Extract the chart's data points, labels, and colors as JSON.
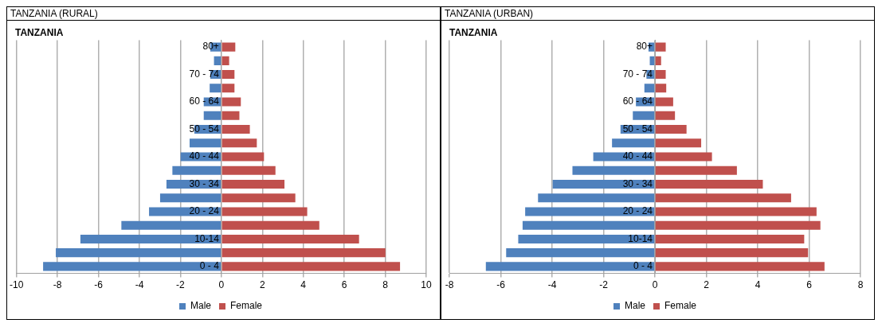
{
  "chart_data": [
    {
      "type": "bar",
      "title": "TANZANIA (RURAL)",
      "subtitle": "TANZANIA",
      "orientation": "horizontal",
      "stacked": true,
      "categories": [
        "80+",
        null,
        "70 - 74",
        null,
        "60 - 64",
        null,
        "50 - 54",
        null,
        "40 - 44",
        null,
        "30 - 34",
        null,
        "20 - 24",
        null,
        "10-14",
        null,
        "0 - 4"
      ],
      "series": [
        {
          "name": "Male",
          "color": "#4f81bd",
          "values": [
            -0.54,
            -0.36,
            -0.54,
            -0.57,
            -0.86,
            -0.86,
            -1.32,
            -1.55,
            -1.99,
            -2.39,
            -2.68,
            -2.99,
            -3.53,
            -4.88,
            -6.88,
            -8.08,
            -8.7
          ]
        },
        {
          "name": "Female",
          "color": "#c0504d",
          "values": [
            0.68,
            0.38,
            0.64,
            0.64,
            0.95,
            0.88,
            1.39,
            1.73,
            2.08,
            2.64,
            3.08,
            3.61,
            4.19,
            4.78,
            6.72,
            8.01,
            8.72
          ]
        }
      ],
      "xlim": [
        -10,
        10
      ],
      "xticks": [
        -10,
        -8,
        -6,
        -4,
        -2,
        0,
        2,
        4,
        6,
        8,
        10
      ],
      "grid": "x",
      "legend": "bottom"
    },
    {
      "type": "bar",
      "title": "TANZANIA (URBAN)",
      "subtitle": "TANZANIA",
      "orientation": "horizontal",
      "stacked": true,
      "categories": [
        "80+",
        null,
        "70 - 74",
        null,
        "60 - 64",
        null,
        "50 - 54",
        null,
        "40 - 44",
        null,
        "30 - 34",
        null,
        "20 - 24",
        null,
        "10-14",
        null,
        "0 - 4"
      ],
      "series": [
        {
          "name": "Male",
          "color": "#4f81bd",
          "values": [
            -0.25,
            -0.2,
            -0.33,
            -0.41,
            -0.74,
            -0.86,
            -1.34,
            -1.67,
            -2.4,
            -3.21,
            -3.98,
            -4.55,
            -5.05,
            -5.15,
            -5.32,
            -5.79,
            -6.58
          ]
        },
        {
          "name": "Female",
          "color": "#c0504d",
          "values": [
            0.42,
            0.24,
            0.42,
            0.44,
            0.71,
            0.78,
            1.23,
            1.8,
            2.22,
            3.19,
            4.2,
            5.3,
            6.29,
            6.44,
            5.81,
            5.96,
            6.6
          ]
        }
      ],
      "xlim": [
        -8,
        8
      ],
      "xticks": [
        -8,
        -6,
        -4,
        -2,
        0,
        2,
        4,
        6,
        8
      ],
      "grid": "x",
      "legend": "bottom"
    }
  ]
}
